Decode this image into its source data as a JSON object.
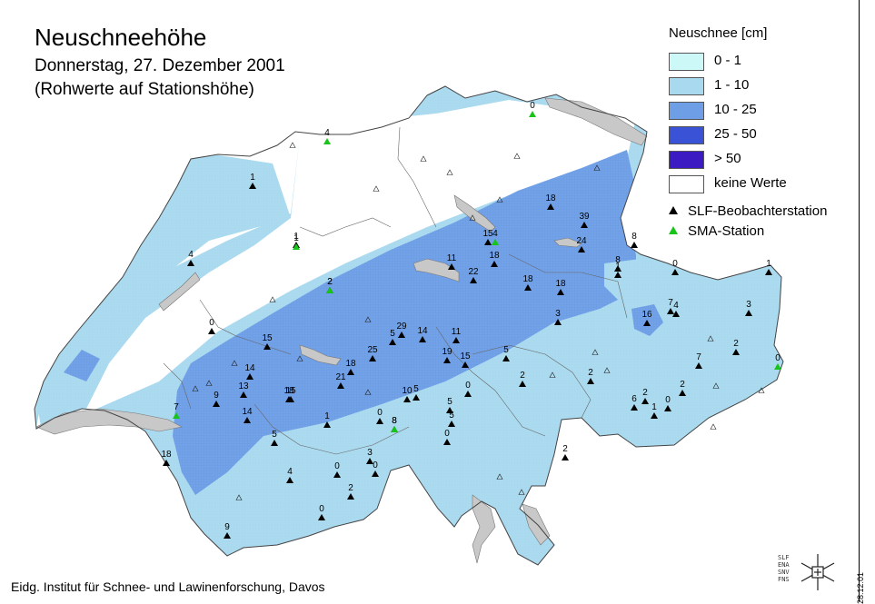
{
  "header": {
    "title": "Neuschneehöhe",
    "date": "Donnerstag, 27. Dezember 2001",
    "note": "(Rohwerte auf Stationshöhe)"
  },
  "legend": {
    "title": "Neuschnee [cm]",
    "classes": [
      {
        "label": "0 - 1",
        "color": "#cdf8f8"
      },
      {
        "label": "1 - 10",
        "color": "#a9d9ee"
      },
      {
        "label": "10 - 25",
        "color": "#6e9ee6"
      },
      {
        "label": "25 - 50",
        "color": "#3a52d6"
      },
      {
        "label": "> 50",
        "color": "#3d1bc2"
      },
      {
        "label": "keine Werte",
        "color": "#ffffff"
      }
    ],
    "stations": [
      {
        "label": "SLF-Beobachterstation",
        "color": "#000000"
      },
      {
        "label": "SMA-Station",
        "color": "#18c418"
      }
    ]
  },
  "footer": {
    "credit": "Eidg. Institut für Schnee- und Lawinenforschung, Davos",
    "logo_lines": [
      "SLF",
      "ENA",
      "SNV",
      "FNS"
    ],
    "date_code": "28.12.01"
  },
  "map_values": {
    "slf": [
      "1",
      "4",
      "1",
      "0",
      "15",
      "14",
      "13",
      "9",
      "14",
      "18",
      "2",
      "5",
      "29",
      "14",
      "11",
      "25",
      "18",
      "21",
      "19",
      "15",
      "10",
      "5",
      "22",
      "18",
      "18",
      "39",
      "24",
      "8",
      "15",
      "18",
      "3",
      "5",
      "2",
      "2",
      "0",
      "5",
      "0",
      "1",
      "0",
      "8",
      "3",
      "0",
      "5",
      "4",
      "0",
      "2",
      "0",
      "9",
      "2",
      "7",
      "4",
      "16",
      "3",
      "2",
      "2",
      "6",
      "1",
      "0",
      "2",
      "5",
      "1",
      "0",
      "11",
      "15",
      "18",
      "8",
      "7",
      "18",
      "1"
    ],
    "sma": [
      "0",
      "4",
      "1",
      "8",
      "2",
      "4",
      "7",
      "0"
    ]
  }
}
